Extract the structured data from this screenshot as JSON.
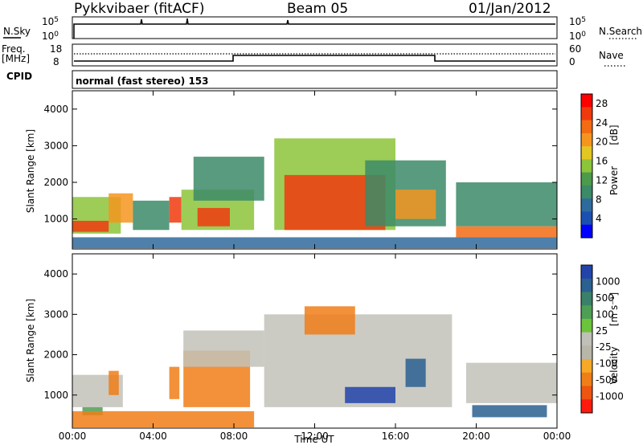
{
  "header": {
    "radar_title": "Pykkvibaer (fitACF)",
    "beam": "Beam 05",
    "date": "01/Jan/2012",
    "cpid_value": "normal (fast stereo) 153"
  },
  "panels": {
    "nsky_label": "N.Sky",
    "nsearch_label": "N.Search",
    "nsky_ticks": [
      "10^5",
      "10^0"
    ],
    "nsearch_ticks": [
      "10^5",
      "10^0"
    ],
    "freq_label": "Freq.",
    "freq_unit": "[MHz]",
    "freq_ticks": [
      "18",
      "8"
    ],
    "nave_label": "Nave",
    "nave_ticks": [
      "60",
      "0"
    ],
    "cpid_label": "CPID"
  },
  "colors": {
    "power": [
      "#0000ff",
      "#1b4fb0",
      "#2f6a9c",
      "#3c8a67",
      "#4c9a4c",
      "#8cc43a",
      "#e2c622",
      "#f5951f",
      "#f36b13",
      "#f03a0e",
      "#ff0000"
    ],
    "velocity": [
      "#2244aa",
      "#2b6090",
      "#3b8068",
      "#4e9e55",
      "#6cc43a",
      "#c0c0b8",
      "#b8b6a8",
      "#f6a826",
      "#f07e18",
      "#ed5510",
      "#ff1a0e"
    ],
    "ground_scatter": "#c2c2ba"
  },
  "chart_data": [
    {
      "type": "heatmap",
      "title": "Power",
      "ylabel": "Slant Range [km]",
      "ylim": [
        180,
        4500
      ],
      "x_ticks": [
        "00:00",
        "04:00",
        "08:00",
        "12:00",
        "16:00",
        "20:00",
        "00:00"
      ],
      "y_ticks": [
        1000,
        2000,
        3000,
        4000
      ],
      "colorbar": {
        "label": "Power",
        "unit": "[dB]",
        "range": [
          0,
          30
        ],
        "ticks": [
          4,
          8,
          12,
          16,
          20,
          24,
          28
        ]
      },
      "regions": [
        {
          "hour_start": 0.0,
          "hour_end": 2.4,
          "range_min": 600,
          "range_max": 1600,
          "value": 14
        },
        {
          "hour_start": 0.0,
          "hour_end": 1.8,
          "range_min": 650,
          "range_max": 950,
          "value": 26
        },
        {
          "hour_start": 1.8,
          "hour_end": 3.0,
          "range_min": 900,
          "range_max": 1700,
          "value": 20
        },
        {
          "hour_start": 3.0,
          "hour_end": 4.8,
          "range_min": 700,
          "range_max": 1500,
          "value": 10
        },
        {
          "hour_start": 4.8,
          "hour_end": 5.4,
          "range_min": 900,
          "range_max": 1600,
          "value": 26
        },
        {
          "hour_start": 5.4,
          "hour_end": 9.0,
          "range_min": 700,
          "range_max": 1800,
          "value": 14
        },
        {
          "hour_start": 6.2,
          "hour_end": 7.8,
          "range_min": 800,
          "range_max": 1300,
          "value": 26
        },
        {
          "hour_start": 6.0,
          "hour_end": 9.5,
          "range_min": 1500,
          "range_max": 2700,
          "value": 8
        },
        {
          "hour_start": 10.0,
          "hour_end": 16.0,
          "range_min": 700,
          "range_max": 3200,
          "value": 14
        },
        {
          "hour_start": 10.5,
          "hour_end": 15.5,
          "range_min": 700,
          "range_max": 2200,
          "value": 27
        },
        {
          "hour_start": 14.5,
          "hour_end": 18.5,
          "range_min": 800,
          "range_max": 2600,
          "value": 10
        },
        {
          "hour_start": 16.0,
          "hour_end": 18.0,
          "range_min": 1000,
          "range_max": 1800,
          "value": 20
        },
        {
          "hour_start": 19.0,
          "hour_end": 24.0,
          "range_min": 500,
          "range_max": 800,
          "value": 24
        },
        {
          "hour_start": 19.0,
          "hour_end": 24.0,
          "range_min": 800,
          "range_max": 2000,
          "value": 10
        },
        {
          "hour_start": 0.0,
          "hour_end": 24.0,
          "range_min": 200,
          "range_max": 500,
          "value": 6
        }
      ]
    },
    {
      "type": "heatmap",
      "title": "Velocity",
      "ylabel": "Slant Range [km]",
      "xlabel": "Time UT",
      "ylim": [
        180,
        4500
      ],
      "x_ticks": [
        "00:00",
        "04:00",
        "08:00",
        "12:00",
        "16:00",
        "20:00",
        "00:00"
      ],
      "y_ticks": [
        1000,
        2000,
        3000,
        4000
      ],
      "colorbar": {
        "label": "Velocity",
        "unit": "[m s⁻¹]",
        "ticks": [
          "1000",
          "500",
          "100",
          "25",
          "-25",
          "-100",
          "-500",
          "-1000"
        ]
      },
      "regions": [
        {
          "hour_start": 0.0,
          "hour_end": 2.5,
          "range_min": 700,
          "range_max": 1500,
          "value": 0
        },
        {
          "hour_start": 1.8,
          "hour_end": 2.3,
          "range_min": 1000,
          "range_max": 1600,
          "value": -300
        },
        {
          "hour_start": 0.5,
          "hour_end": 1.5,
          "range_min": 500,
          "range_max": 700,
          "value": 150
        },
        {
          "hour_start": 4.8,
          "hour_end": 5.3,
          "range_min": 900,
          "range_max": 1700,
          "value": -300
        },
        {
          "hour_start": 5.5,
          "hour_end": 8.8,
          "range_min": 700,
          "range_max": 2100,
          "value": -250
        },
        {
          "hour_start": 5.5,
          "hour_end": 9.5,
          "range_min": 1700,
          "range_max": 2600,
          "value": 0
        },
        {
          "hour_start": 9.5,
          "hour_end": 18.8,
          "range_min": 700,
          "range_max": 3000,
          "value": 0
        },
        {
          "hour_start": 11.5,
          "hour_end": 14.0,
          "range_min": 2500,
          "range_max": 3200,
          "value": -300
        },
        {
          "hour_start": 13.5,
          "hour_end": 16.0,
          "range_min": 800,
          "range_max": 1200,
          "value": 800
        },
        {
          "hour_start": 16.5,
          "hour_end": 17.5,
          "range_min": 1200,
          "range_max": 1900,
          "value": 300
        },
        {
          "hour_start": 19.5,
          "hour_end": 24.0,
          "range_min": 800,
          "range_max": 1800,
          "value": 0
        },
        {
          "hour_start": 19.8,
          "hour_end": 23.5,
          "range_min": 450,
          "range_max": 750,
          "value": 300
        },
        {
          "hour_start": 0.0,
          "hour_end": 9.0,
          "range_min": 200,
          "range_max": 600,
          "value": -200
        }
      ]
    },
    {
      "type": "line",
      "title": "N.Sky / N.Search",
      "x": [
        0,
        3.5,
        5.7,
        10.8,
        24
      ],
      "y": [
        100000,
        100000,
        100000,
        100000,
        100000
      ]
    },
    {
      "type": "line",
      "title": "Freq. / Nave",
      "x": [
        0,
        8.0,
        8.0,
        18.0,
        18.0,
        24
      ],
      "freq_mhz": [
        10,
        10,
        12,
        12,
        10,
        10
      ],
      "nave": [
        22,
        22,
        22,
        22,
        22,
        22
      ]
    }
  ]
}
